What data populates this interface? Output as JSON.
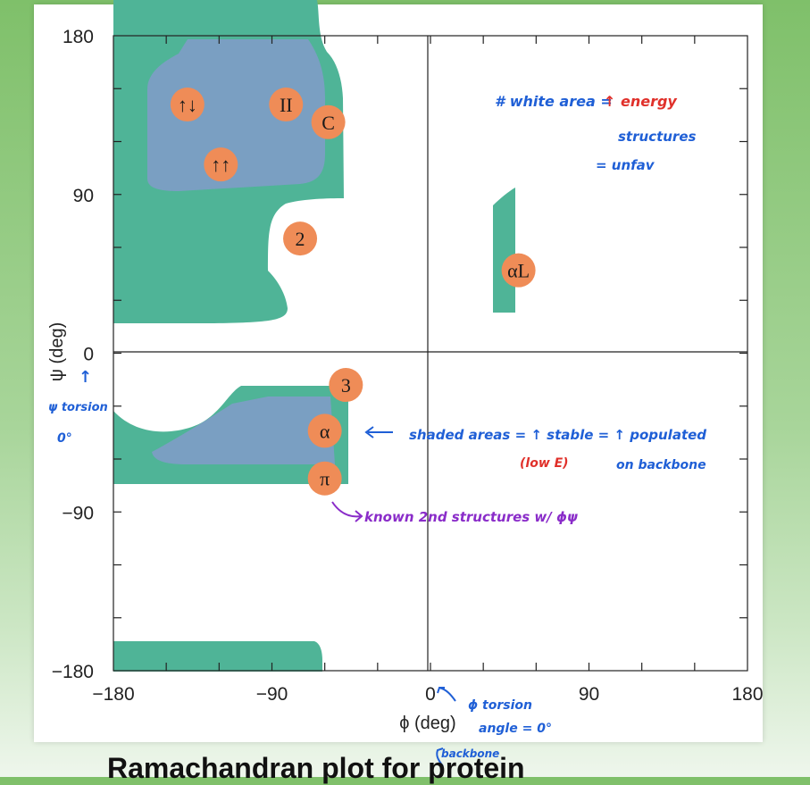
{
  "chart_data": {
    "type": "scatter",
    "title": "",
    "xlabel": "ϕ (deg)",
    "ylabel": "ψ (deg)",
    "xlim": [
      -180,
      180
    ],
    "ylim": [
      -180,
      180
    ],
    "x_ticks": [
      -180,
      -90,
      0,
      90,
      180
    ],
    "y_ticks": [
      180,
      90,
      0,
      -90,
      -180
    ],
    "x_tick_labels": [
      "−180",
      "−90",
      "0",
      "90",
      "180"
    ],
    "y_tick_labels": [
      "180",
      "90",
      "0",
      "−90",
      "−180"
    ],
    "regions": [
      {
        "name": "allowed-outer",
        "color": "#4fb497"
      },
      {
        "name": "core",
        "color": "#7a9fc2"
      }
    ],
    "markers": [
      {
        "label": "↑↓",
        "x": -138,
        "y": 141
      },
      {
        "label": "II",
        "x": -82,
        "y": 141
      },
      {
        "label": "C",
        "x": -58,
        "y": 131
      },
      {
        "label": "↑↑",
        "x": -119,
        "y": 107
      },
      {
        "label": "2",
        "x": -74,
        "y": 65
      },
      {
        "label": "αL",
        "x": 50,
        "y": 47
      },
      {
        "label": "3",
        "x": -48,
        "y": -18
      },
      {
        "label": "α",
        "x": -60,
        "y": -44
      },
      {
        "label": "π",
        "x": -60,
        "y": -71
      }
    ],
    "grid": false
  },
  "annotations": {
    "white_area_1": "# white area =",
    "white_area_2": "↑ energy",
    "white_area_3": "structures",
    "white_area_4": "= unfav",
    "psi_note_1": "↑",
    "psi_note_2": "ψ torsion",
    "psi_note_3": "0°",
    "shaded_1": "shaded areas = ↑ stable = ↑ populated",
    "shaded_2": "(low E)",
    "shaded_3": "on backbone",
    "known": "known 2nd structures w/ ϕψ",
    "phi_note_1": "ϕ torsion",
    "phi_note_2": "angle = 0°",
    "backbone": "backbone"
  },
  "footer_text": "Ramachandran plot for protein",
  "colors": {
    "outer_region": "#4fb497",
    "core_region": "#7a9fc2",
    "marker_fill": "#ef8c57",
    "annotation_blue": "#1f5fd6",
    "annotation_red": "#e0302a",
    "annotation_purple": "#8a2cc9"
  }
}
